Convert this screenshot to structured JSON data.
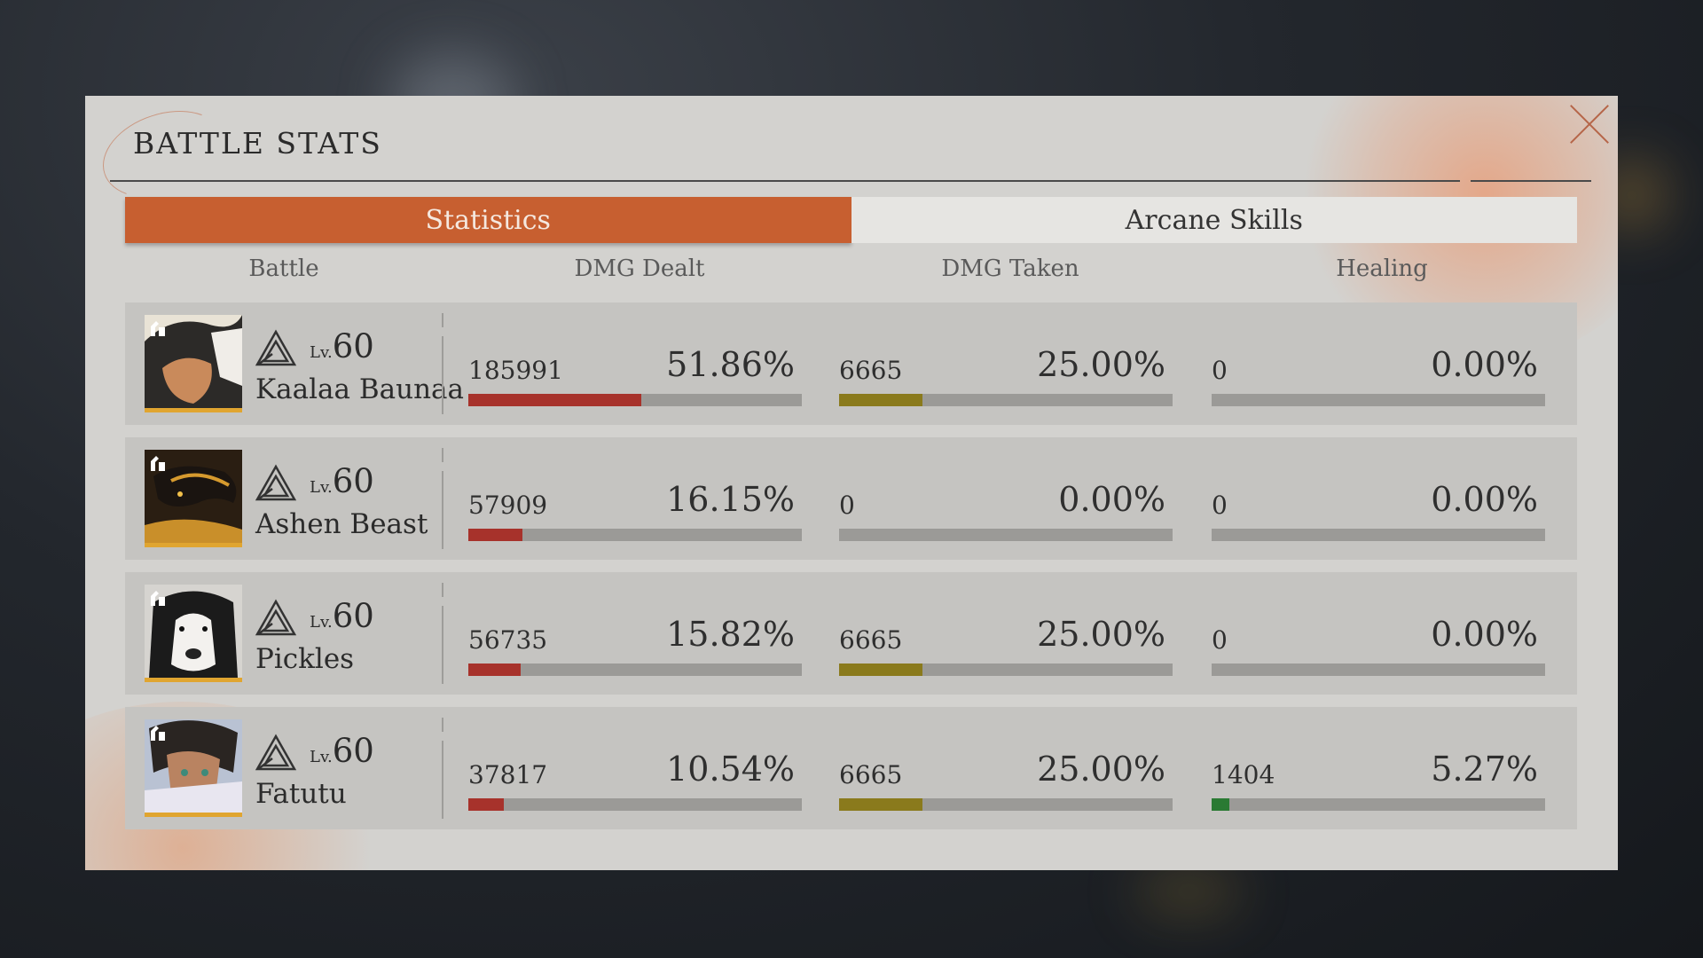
{
  "title": "BATTLE STATS",
  "tabs": [
    {
      "label": "Statistics",
      "active": true
    },
    {
      "label": "Arcane Skills",
      "active": false
    }
  ],
  "columns": [
    "Battle",
    "DMG Dealt",
    "DMG Taken",
    "Healing"
  ],
  "level_prefix": "Lv.",
  "colors": {
    "accent": "#c75f30",
    "dealt_bar": "#a7322b",
    "taken_bar": "#8a7a1c",
    "healing_bar": "#2a7a33"
  },
  "rows": [
    {
      "name": "Kaalaa Baunaa",
      "level": "60",
      "portrait_icon": "character-portrait",
      "dealt": {
        "value": "185991",
        "percent": "51.86%",
        "fraction": 0.5186
      },
      "taken": {
        "value": "6665",
        "percent": "25.00%",
        "fraction": 0.25
      },
      "healing": {
        "value": "0",
        "percent": "0.00%",
        "fraction": 0
      }
    },
    {
      "name": "Ashen Beast",
      "level": "60",
      "portrait_icon": "beast-portrait",
      "dealt": {
        "value": "57909",
        "percent": "16.15%",
        "fraction": 0.1615
      },
      "taken": {
        "value": "0",
        "percent": "0.00%",
        "fraction": 0
      },
      "healing": {
        "value": "0",
        "percent": "0.00%",
        "fraction": 0
      }
    },
    {
      "name": "Pickles",
      "level": "60",
      "portrait_icon": "dog-portrait",
      "dealt": {
        "value": "56735",
        "percent": "15.82%",
        "fraction": 0.1582
      },
      "taken": {
        "value": "6665",
        "percent": "25.00%",
        "fraction": 0.25
      },
      "healing": {
        "value": "0",
        "percent": "0.00%",
        "fraction": 0
      }
    },
    {
      "name": "Fatutu",
      "level": "60",
      "portrait_icon": "character-portrait",
      "dealt": {
        "value": "37817",
        "percent": "10.54%",
        "fraction": 0.1054
      },
      "taken": {
        "value": "6665",
        "percent": "25.00%",
        "fraction": 0.25
      },
      "healing": {
        "value": "1404",
        "percent": "5.27%",
        "fraction": 0.0527
      }
    }
  ]
}
